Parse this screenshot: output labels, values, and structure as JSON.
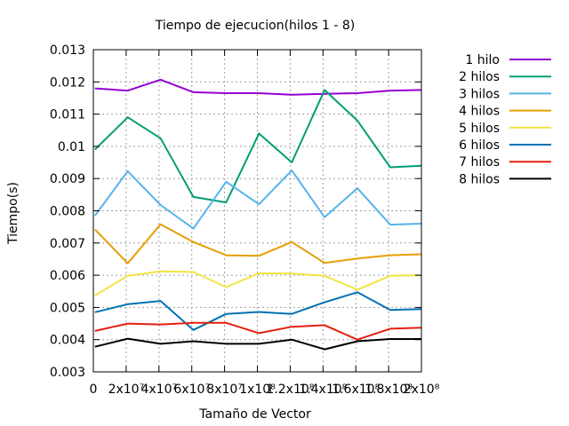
{
  "chart_data": {
    "type": "line",
    "title": "Tiempo de ejecucion(hilos 1 - 8)",
    "xlabel": "Tamaño de Vector",
    "ylabel": "Tiempo(s)",
    "xlim": [
      0,
      200000000
    ],
    "ylim": [
      0.003,
      0.013
    ],
    "grid": true,
    "legend_position": "top-right, outside plot",
    "x_ticks": [
      {
        "value": 0,
        "label": "0"
      },
      {
        "value": 20000000,
        "label": "2x10⁷"
      },
      {
        "value": 40000000,
        "label": "4x10⁷"
      },
      {
        "value": 60000000,
        "label": "6x10⁷"
      },
      {
        "value": 80000000,
        "label": "8x10⁷"
      },
      {
        "value": 100000000,
        "label": "1x10⁸"
      },
      {
        "value": 120000000,
        "label": "1.2x10⁸"
      },
      {
        "value": 140000000,
        "label": "1.4x10⁸"
      },
      {
        "value": 160000000,
        "label": "1.6x10⁸"
      },
      {
        "value": 180000000,
        "label": "1.8x10⁸"
      },
      {
        "value": 200000000,
        "label": "2x10⁸"
      }
    ],
    "y_ticks": [
      {
        "value": 0.003,
        "label": "0.003"
      },
      {
        "value": 0.004,
        "label": "0.004"
      },
      {
        "value": 0.005,
        "label": "0.005"
      },
      {
        "value": 0.006,
        "label": "0.006"
      },
      {
        "value": 0.007,
        "label": "0.007"
      },
      {
        "value": 0.008,
        "label": "0.008"
      },
      {
        "value": 0.009,
        "label": "0.009"
      },
      {
        "value": 0.01,
        "label": "0.01"
      },
      {
        "value": 0.011,
        "label": "0.011"
      },
      {
        "value": 0.012,
        "label": "0.012"
      },
      {
        "value": 0.013,
        "label": "0.013"
      }
    ],
    "x": [
      1000000,
      21000000,
      41000000,
      61000000,
      81000000,
      101000000,
      121000000,
      141000000,
      161000000,
      181000000,
      200000000
    ],
    "series": [
      {
        "name": "1 hilo",
        "color": "#9400d3",
        "values": [
          0.0118,
          0.01173,
          0.01207,
          0.01168,
          0.01165,
          0.01165,
          0.0116,
          0.01163,
          0.01165,
          0.01173,
          0.01175
        ]
      },
      {
        "name": "2 hilos",
        "color": "#009e73",
        "values": [
          0.0099,
          0.0109,
          0.01025,
          0.00843,
          0.00826,
          0.0104,
          0.0095,
          0.01175,
          0.0108,
          0.00935,
          0.0094
        ]
      },
      {
        "name": "3 hilos",
        "color": "#56b4e9",
        "values": [
          0.00785,
          0.00923,
          0.00818,
          0.00745,
          0.0089,
          0.0082,
          0.00925,
          0.0078,
          0.0087,
          0.00757,
          0.0076
        ]
      },
      {
        "name": "4 hilos",
        "color": "#e69f00",
        "values": [
          0.00742,
          0.00637,
          0.00758,
          0.00703,
          0.00662,
          0.0066,
          0.00703,
          0.00638,
          0.00652,
          0.00662,
          0.00665
        ]
      },
      {
        "name": "5 hilos",
        "color": "#f0e442",
        "values": [
          0.00537,
          0.00598,
          0.00612,
          0.0061,
          0.00563,
          0.00606,
          0.00605,
          0.00598,
          0.00555,
          0.00598,
          0.006
        ]
      },
      {
        "name": "6 hilos",
        "color": "#0072b2",
        "values": [
          0.00485,
          0.0051,
          0.0052,
          0.0043,
          0.0048,
          0.00486,
          0.0048,
          0.00516,
          0.00547,
          0.00492,
          0.00495
        ]
      },
      {
        "name": "7 hilos",
        "color": "#e51e10",
        "values": [
          0.00427,
          0.0045,
          0.00447,
          0.00452,
          0.00452,
          0.0042,
          0.0044,
          0.00445,
          0.004,
          0.00434,
          0.00437
        ]
      },
      {
        "name": "8 hilos",
        "color": "#000000",
        "values": [
          0.00378,
          0.00403,
          0.00387,
          0.00395,
          0.00387,
          0.00387,
          0.004,
          0.0037,
          0.00395,
          0.00402,
          0.00402
        ]
      }
    ]
  }
}
